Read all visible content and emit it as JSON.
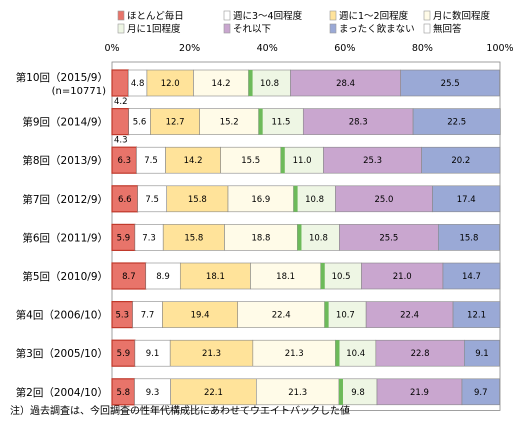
{
  "chart_data": {
    "type": "bar",
    "orientation": "horizontal",
    "stacked": true,
    "percent": true,
    "title": "",
    "xlim": [
      0,
      100
    ],
    "x_ticks": [
      "0%",
      "20%",
      "40%",
      "60%",
      "80%",
      "100%"
    ],
    "legend_placement": "top",
    "grid": false,
    "categories": [
      "第10回（2015/9）",
      "第9回（2014/9）",
      "第8回（2013/9）",
      "第7回（2012/9）",
      "第6回（2011/9）",
      "第5回（2010/9）",
      "第4回（2006/10）",
      "第3回（2005/10）",
      "第2回（2004/10）"
    ],
    "category_sublabels": [
      "(n=10771)",
      "",
      "",
      "",
      "",
      "",
      "",
      "",
      ""
    ],
    "series": [
      {
        "name": "ほとんど毎日",
        "color": "#e8746a",
        "values": [
          4.2,
          4.3,
          6.3,
          6.6,
          5.9,
          8.7,
          5.3,
          5.9,
          5.8
        ],
        "labels": [
          "4.2",
          "4.3",
          "6.3",
          "6.6",
          "5.9",
          "8.7",
          "5.3",
          "5.9",
          "5.8"
        ]
      },
      {
        "name": "週に3～4回程度",
        "color": "#ffffff",
        "values": [
          4.8,
          5.6,
          7.5,
          7.5,
          7.3,
          8.9,
          7.7,
          9.1,
          9.3
        ],
        "labels": [
          "4.8",
          "5.6",
          "7.5",
          "7.5",
          "7.3",
          "8.9",
          "7.7",
          "9.1",
          "9.3"
        ]
      },
      {
        "name": "週に1～2回程度",
        "color": "#ffe39a",
        "values": [
          12.0,
          12.7,
          14.2,
          15.8,
          15.8,
          18.1,
          19.4,
          21.3,
          22.1
        ],
        "labels": [
          "12.0",
          "12.7",
          "14.2",
          "15.8",
          "15.8",
          "18.1",
          "19.4",
          "21.3",
          "22.1"
        ]
      },
      {
        "name": "月に数回程度",
        "color": "#fffbe8",
        "values": [
          14.2,
          15.2,
          15.5,
          16.9,
          18.8,
          18.1,
          22.4,
          21.3,
          21.3
        ],
        "labels": [
          "14.2",
          "15.2",
          "15.5",
          "16.9",
          "18.8",
          "18.1",
          "22.4",
          "21.3",
          "21.3"
        ]
      },
      {
        "name": "月に1回程度",
        "color": "#eef6e4",
        "values": [
          10.8,
          11.5,
          11.0,
          10.8,
          10.8,
          10.5,
          10.7,
          10.4,
          9.8
        ],
        "labels": [
          "10.8",
          "11.5",
          "11.0",
          "10.8",
          "10.8",
          "10.5",
          "10.7",
          "10.4",
          "9.8"
        ]
      },
      {
        "name": "それ以下",
        "color": "#c9a6cf",
        "values": [
          28.4,
          28.3,
          25.3,
          25.0,
          25.5,
          21.0,
          22.4,
          22.8,
          21.9
        ],
        "labels": [
          "28.4",
          "28.3",
          "25.3",
          "25.0",
          "25.5",
          "21.0",
          "22.4",
          "22.8",
          "21.9"
        ]
      },
      {
        "name": "まったく飲まない",
        "color": "#9aa9d6",
        "values": [
          25.5,
          22.5,
          20.2,
          17.4,
          15.8,
          14.7,
          12.1,
          9.1,
          9.7
        ],
        "labels": [
          "25.5",
          "22.5",
          "20.2",
          "17.4",
          "15.8",
          "14.7",
          "12.1",
          "9.1",
          "9.7"
        ]
      },
      {
        "name": "無回答",
        "color": "#ffffff",
        "values": [
          0,
          0,
          0,
          0,
          0,
          0,
          0,
          0,
          0
        ],
        "labels": [
          "",
          "",
          "",
          "",
          "",
          "",
          "",
          "",
          ""
        ]
      }
    ],
    "separator_color": "#6dba5a",
    "note": "注）過去調査は、今回調査の性年代構成比にあわせてウエイトバックした値"
  }
}
